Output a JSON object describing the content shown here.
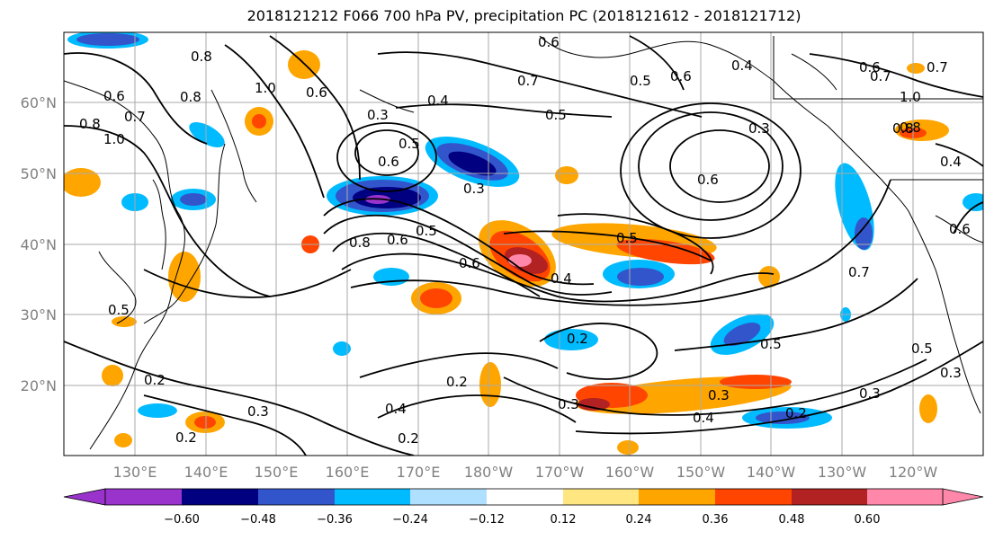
{
  "title": "2018121212 F066 700 hPa PV, precipitation PC (2018121612 - 2018121712)",
  "lat_labels": [
    "60°N",
    "50°N",
    "40°N",
    "30°N",
    "20°N"
  ],
  "lon_labels": [
    "130°E",
    "140°E",
    "150°E",
    "160°E",
    "170°E",
    "180°W",
    "170°W",
    "160°W",
    "150°W",
    "140°W",
    "130°W",
    "120°W"
  ],
  "colorbar": {
    "colors": [
      "#9933cc",
      "#000080",
      "#3355cc",
      "#00bbff",
      "#b0e0ff",
      "#ffffff",
      "#ffe680",
      "#ffa500",
      "#ff4500",
      "#b22222",
      "#ff88aa"
    ],
    "tick_labels": [
      "−0.60",
      "−0.48",
      "−0.36",
      "−0.24",
      "−0.12",
      "0.12",
      "0.24",
      "0.36",
      "0.48",
      "0.60"
    ]
  },
  "contour_labels": [
    "0.8",
    "1.0",
    "0.6",
    "0.7",
    "0.8",
    "1.0",
    "0.8",
    "0.6",
    "0.3",
    "0.4",
    "0.5",
    "0.6",
    "0.6",
    "0.5",
    "0.3",
    "0.8",
    "0.6",
    "0.5",
    "0.6",
    "0.4",
    "0.5",
    "0.7",
    "0.6",
    "0.3",
    "0.5",
    "0.4",
    "0.6",
    "0.7",
    "1.0",
    "0.8",
    "0.6",
    "0.4",
    "0.7",
    "0.6",
    "0.5",
    "0.5",
    "0.2",
    "0.2",
    "0.3",
    "0.2",
    "0.4",
    "0.2",
    "0.2",
    "0.3",
    "0.4",
    "0.2",
    "0.3",
    "0.5",
    "0.3",
    "0.3",
    "0.8",
    "0.7"
  ]
}
